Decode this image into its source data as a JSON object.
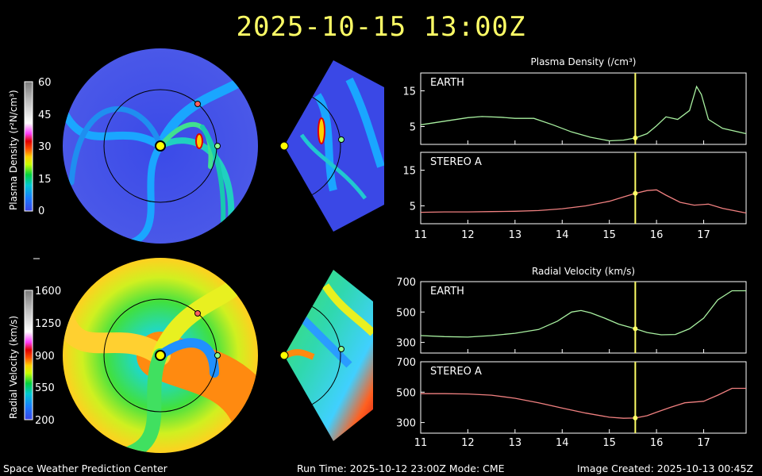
{
  "title": "2025-10-15 13:00Z",
  "footer": {
    "left": "Space Weather Prediction Center",
    "middle": "Run Time: 2025-10-12 23:00Z  Mode: CME",
    "right": "Image Created: 2025-10-13 00:45Z"
  },
  "colorbars": {
    "density": {
      "label": "Plasma Density (r²N/cm³)",
      "ticks": [
        "60",
        "45",
        "30",
        "15",
        "0"
      ]
    },
    "velocity": {
      "label": "Radial Velocity (km/s)",
      "ticks": [
        "1600",
        "1250",
        "900",
        "550",
        "200"
      ]
    }
  },
  "chart_data": [
    {
      "type": "line",
      "title": "Plasma Density (/cm³)",
      "panels": [
        {
          "label": "EARTH",
          "color": "#a8f0a0",
          "ylim": [
            0,
            20
          ],
          "yticks": [
            "15",
            "5"
          ],
          "x": [
            11.0,
            11.5,
            12.0,
            12.3,
            12.7,
            13.0,
            13.4,
            13.8,
            14.2,
            14.6,
            15.0,
            15.3,
            15.55,
            15.8,
            16.0,
            16.2,
            16.45,
            16.7,
            16.85,
            16.95,
            17.1,
            17.4,
            17.9
          ],
          "values": [
            5.5,
            6.5,
            7.5,
            7.8,
            7.6,
            7.3,
            7.3,
            5.5,
            3.5,
            2.0,
            1.0,
            1.2,
            1.8,
            3.0,
            5.2,
            7.7,
            7.0,
            9.5,
            16.2,
            14.0,
            7.0,
            4.5,
            3.0
          ],
          "marker_x": 15.55
        },
        {
          "label": "STEREO A",
          "color": "#f08080",
          "ylim": [
            0,
            20
          ],
          "yticks": [
            "15",
            "5"
          ],
          "x": [
            11.0,
            11.5,
            12.0,
            12.5,
            13.0,
            13.5,
            14.0,
            14.5,
            15.0,
            15.3,
            15.55,
            15.8,
            16.0,
            16.2,
            16.5,
            16.8,
            17.1,
            17.4,
            17.9
          ],
          "values": [
            3.2,
            3.3,
            3.3,
            3.4,
            3.5,
            3.7,
            4.2,
            5.0,
            6.3,
            7.5,
            8.5,
            9.3,
            9.5,
            8.0,
            6.0,
            5.2,
            5.5,
            4.3,
            3.0
          ],
          "marker_x": 15.55
        }
      ],
      "xlim": [
        11,
        17.9
      ],
      "xticks": [
        "11",
        "12",
        "13",
        "14",
        "15",
        "16",
        "17"
      ]
    },
    {
      "type": "line",
      "title": "Radial Velocity (km/s)",
      "panels": [
        {
          "label": "EARTH",
          "color": "#a8f0a0",
          "ylim": [
            230,
            700
          ],
          "yticks": [
            "700",
            "500",
            "300"
          ],
          "x": [
            11.0,
            11.5,
            12.0,
            12.5,
            13.0,
            13.5,
            13.9,
            14.2,
            14.4,
            14.6,
            14.9,
            15.2,
            15.55,
            15.8,
            16.1,
            16.4,
            16.7,
            17.0,
            17.3,
            17.6,
            17.9
          ],
          "values": [
            345,
            338,
            335,
            345,
            360,
            385,
            440,
            500,
            510,
            495,
            460,
            420,
            390,
            365,
            350,
            352,
            390,
            460,
            580,
            640,
            640
          ],
          "marker_x": 15.55
        },
        {
          "label": "STEREO A",
          "color": "#f08080",
          "ylim": [
            230,
            700
          ],
          "yticks": [
            "700",
            "500",
            "300"
          ],
          "x": [
            11.0,
            11.5,
            12.0,
            12.5,
            13.0,
            13.5,
            14.0,
            14.5,
            15.0,
            15.3,
            15.55,
            15.8,
            16.0,
            16.3,
            16.6,
            17.0,
            17.3,
            17.6,
            17.9
          ],
          "values": [
            490,
            490,
            488,
            480,
            460,
            430,
            395,
            362,
            335,
            328,
            330,
            345,
            368,
            400,
            430,
            440,
            480,
            525,
            525
          ],
          "marker_x": 15.55
        }
      ],
      "xlim": [
        11,
        17.9
      ],
      "xticks": [
        "11",
        "12",
        "13",
        "14",
        "15",
        "16",
        "17"
      ]
    }
  ]
}
